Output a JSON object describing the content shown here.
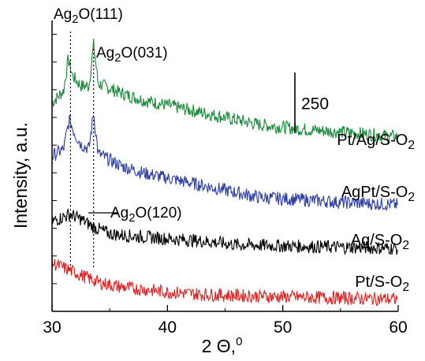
{
  "chart_data": {
    "type": "line",
    "xlabel": "2 Θ,",
    "xlabel_sup": "0",
    "ylabel": "Intensity, a.u.",
    "xlim": [
      30,
      60
    ],
    "x_ticks": [
      "30",
      "40",
      "50",
      "60"
    ],
    "scale_bar_label": "250",
    "scale_bar_value": 250,
    "annotations": [
      {
        "base": "Ag",
        "sub": "2",
        "rest": "O(111)",
        "x": 31.6
      },
      {
        "base": "Ag",
        "sub": "2",
        "rest": "O(031)",
        "x": 33.6
      },
      {
        "base": "Ag",
        "sub": "2",
        "rest": "O(120)",
        "x": 31.6
      }
    ],
    "series": [
      {
        "name_base": "Pt/Ag/S-O",
        "name_sub": "2",
        "color": "#1a8a3a",
        "baseline": 1020,
        "points": [
          [
            30,
            960
          ],
          [
            31,
            1010
          ],
          [
            31.4,
            1140
          ],
          [
            31.8,
            1070
          ],
          [
            32.5,
            1030
          ],
          [
            33.2,
            1030
          ],
          [
            33.6,
            1200
          ],
          [
            34,
            1040
          ],
          [
            36,
            1000
          ],
          [
            38,
            970
          ],
          [
            40,
            950
          ],
          [
            42,
            930
          ],
          [
            45,
            900
          ],
          [
            48,
            870
          ],
          [
            52,
            850
          ],
          [
            55,
            840
          ],
          [
            60,
            820
          ]
        ]
      },
      {
        "name_base": "AgPt/S-O",
        "name_sub": "2",
        "color": "#2e3fa8",
        "baseline": 760,
        "points": [
          [
            30,
            740
          ],
          [
            31,
            770
          ],
          [
            31.5,
            890
          ],
          [
            32,
            830
          ],
          [
            32.5,
            790
          ],
          [
            33.2,
            770
          ],
          [
            33.6,
            920
          ],
          [
            34,
            750
          ],
          [
            36,
            700
          ],
          [
            38,
            670
          ],
          [
            40,
            650
          ],
          [
            42,
            630
          ],
          [
            45,
            600
          ],
          [
            48,
            570
          ],
          [
            52,
            560
          ],
          [
            55,
            550
          ],
          [
            60,
            540
          ]
        ]
      },
      {
        "name_base": "Ag/S-O",
        "name_sub": "2",
        "color": "#000000",
        "baseline": 480,
        "points": [
          [
            30,
            470
          ],
          [
            31,
            490
          ],
          [
            31.6,
            500
          ],
          [
            32.5,
            480
          ],
          [
            33.5,
            450
          ],
          [
            35,
            420
          ],
          [
            37,
            410
          ],
          [
            40,
            400
          ],
          [
            43,
            390
          ],
          [
            46,
            375
          ],
          [
            50,
            370
          ],
          [
            55,
            365
          ],
          [
            60,
            360
          ]
        ]
      },
      {
        "name_base": "Pt/S-O",
        "name_sub": "2",
        "color": "#e02020",
        "baseline": 300,
        "points": [
          [
            30,
            300
          ],
          [
            31,
            280
          ],
          [
            32,
            260
          ],
          [
            33,
            240
          ],
          [
            34,
            220
          ],
          [
            36,
            200
          ],
          [
            38,
            190
          ],
          [
            40,
            180
          ],
          [
            43,
            170
          ],
          [
            46,
            165
          ],
          [
            50,
            160
          ],
          [
            55,
            155
          ],
          [
            60,
            150
          ]
        ]
      }
    ],
    "grid": false,
    "legend": "inline labels at right"
  }
}
